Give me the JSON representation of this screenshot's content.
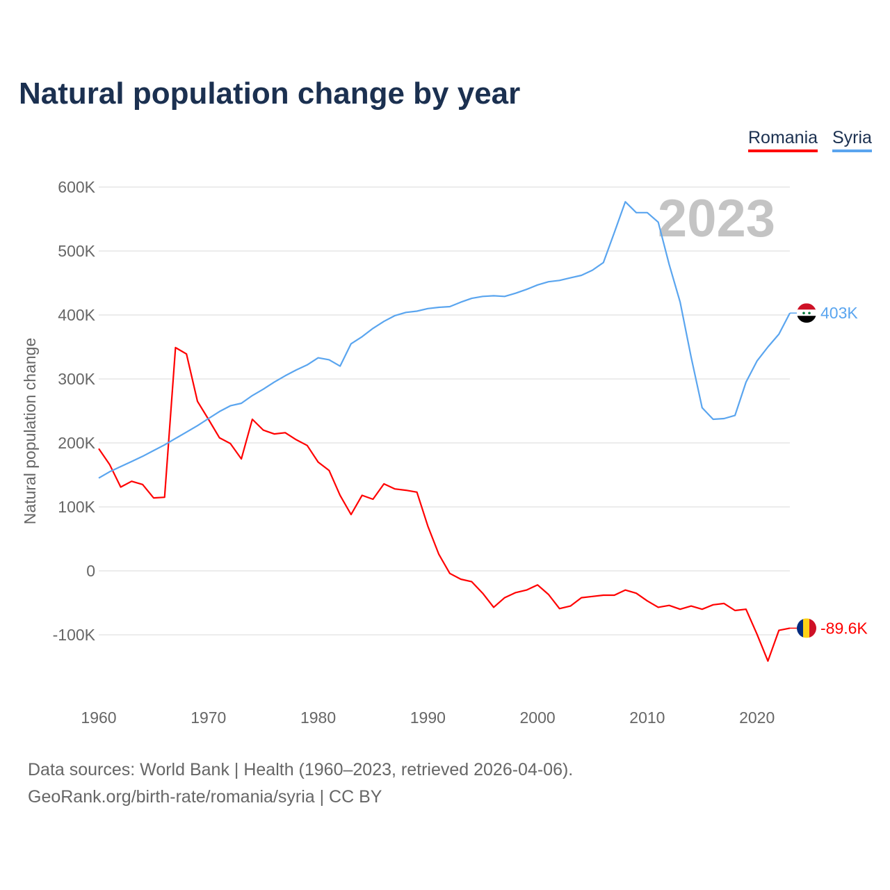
{
  "title": "Natural population change by year",
  "legend": [
    {
      "name": "Romania",
      "color": "#ff0000"
    },
    {
      "name": "Syria",
      "color": "#5aa5ef"
    }
  ],
  "year_watermark": "2023",
  "footer": {
    "line1": "Data sources: World Bank | Health (1960–2023, retrieved 2026-04-06).",
    "line2": "GeoRank.org/birth-rate/romania/syria | CC BY"
  },
  "chart_data": {
    "type": "line",
    "title": "Natural population change by year",
    "xlabel": "",
    "ylabel": "Natural population change",
    "xlim": [
      1960,
      2023
    ],
    "ylim": [
      -190,
      600
    ],
    "grid": true,
    "legend_position": "top-right",
    "x_ticks": [
      "1960",
      "1970",
      "1980",
      "1990",
      "2000",
      "2010",
      "2020"
    ],
    "y_ticks": [
      {
        "value": 600,
        "label": "600K"
      },
      {
        "value": 500,
        "label": "500K"
      },
      {
        "value": 400,
        "label": "400K"
      },
      {
        "value": 300,
        "label": "300K"
      },
      {
        "value": 200,
        "label": "200K"
      },
      {
        "value": 100,
        "label": "100K"
      },
      {
        "value": 0,
        "label": "0"
      },
      {
        "value": -100,
        "label": "-100K"
      }
    ],
    "x_start": 1960,
    "units": "thousands",
    "series": [
      {
        "name": "Romania",
        "color": "#ff0000",
        "end_label": "-89.6K",
        "values": [
          191,
          166,
          131,
          140,
          135,
          114,
          115,
          349,
          339,
          265,
          237,
          208,
          199,
          175,
          237,
          220,
          214,
          216,
          205,
          196,
          170,
          157,
          118,
          88,
          118,
          112,
          136,
          128,
          126,
          123,
          70,
          26,
          -4,
          -13,
          -17,
          -35,
          -57,
          -42,
          -34,
          -30,
          -22,
          -37,
          -59,
          -55,
          -42,
          -40,
          -38,
          -38,
          -30,
          -35,
          -47,
          -57,
          -54,
          -60,
          -55,
          -60,
          -53,
          -51,
          -62,
          -60,
          -99,
          -141,
          -93,
          -89.6
        ]
      },
      {
        "name": "Syria",
        "color": "#5aa5ef",
        "end_label": "403K",
        "values": [
          145,
          155,
          163,
          171,
          179,
          188,
          197,
          207,
          217,
          227,
          238,
          249,
          258,
          262,
          274,
          284,
          295,
          305,
          314,
          322,
          333,
          330,
          320,
          355,
          366,
          379,
          390,
          399,
          404,
          406,
          410,
          412,
          413,
          420,
          426,
          429,
          430,
          429,
          434,
          440,
          447,
          452,
          454,
          458,
          462,
          470,
          482,
          529,
          577,
          560,
          560,
          545,
          479,
          420,
          334,
          255,
          237,
          238,
          243,
          295,
          328,
          350,
          370,
          403
        ]
      }
    ]
  }
}
